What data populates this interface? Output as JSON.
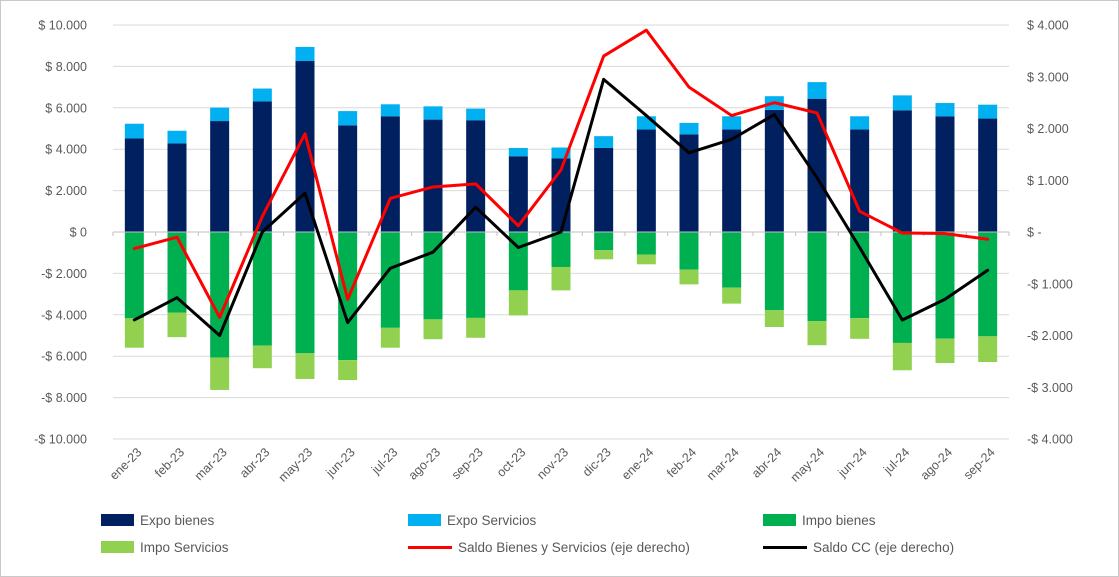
{
  "chart_data": {
    "type": "combo-stacked-bar-line",
    "title": "",
    "categories": [
      "ene-23",
      "feb-23",
      "mar-23",
      "abr-23",
      "may-23",
      "jun-23",
      "jul-23",
      "ago-23",
      "sep-23",
      "oct-23",
      "nov-23",
      "dic-23",
      "ene-24",
      "feb-24",
      "mar-24",
      "abr-24",
      "may-24",
      "jun-24",
      "jul-24",
      "ago-24",
      "sep-24"
    ],
    "series": [
      {
        "name": "Expo bienes",
        "type": "bar",
        "stack": "pos",
        "axis": "left",
        "color": "#002060",
        "values": [
          4520,
          4280,
          5360,
          6310,
          8260,
          5150,
          5590,
          5430,
          5400,
          3660,
          3550,
          4060,
          4950,
          4720,
          4950,
          5900,
          6440,
          4950,
          5880,
          5590,
          5480
        ]
      },
      {
        "name": "Expo Servicios",
        "type": "bar",
        "stack": "pos",
        "axis": "left",
        "color": "#00B0F0",
        "values": [
          710,
          610,
          650,
          620,
          680,
          690,
          580,
          640,
          560,
          400,
          530,
          570,
          640,
          550,
          640,
          660,
          800,
          640,
          720,
          640,
          670
        ]
      },
      {
        "name": "Impo bienes",
        "type": "bar",
        "stack": "neg",
        "axis": "left",
        "color": "#00B050",
        "values": [
          -4170,
          -3890,
          -6070,
          -5490,
          -5860,
          -6190,
          -4630,
          -4220,
          -4150,
          -2820,
          -1690,
          -880,
          -1090,
          -1820,
          -2690,
          -3780,
          -4310,
          -4160,
          -5360,
          -5150,
          -5040
        ]
      },
      {
        "name": "Impo Servicios",
        "type": "bar",
        "stack": "neg",
        "axis": "left",
        "color": "#92D050",
        "values": [
          -1420,
          -1190,
          -1560,
          -1090,
          -1240,
          -960,
          -960,
          -960,
          -960,
          -1210,
          -1130,
          -440,
          -470,
          -710,
          -770,
          -810,
          -1160,
          -1000,
          -1320,
          -1180,
          -1240
        ]
      },
      {
        "name": "Saldo Bienes y Servicios (eje derecho)",
        "type": "line",
        "axis": "right",
        "color": "#FF0000",
        "values": [
          -320,
          -100,
          -1650,
          300,
          1900,
          -1300,
          650,
          870,
          930,
          120,
          1200,
          3400,
          3900,
          2800,
          2250,
          2500,
          2300,
          400,
          -20,
          -30,
          -140
        ]
      },
      {
        "name": "Saldo CC (eje derecho)",
        "type": "line",
        "axis": "right",
        "color": "#000000",
        "values": [
          -1700,
          -1270,
          -2000,
          0,
          750,
          -1750,
          -700,
          -390,
          480,
          -300,
          0,
          2950,
          2250,
          1530,
          1790,
          2270,
          1050,
          -300,
          -1700,
          -1300,
          -740
        ]
      }
    ],
    "left_axis": {
      "min": -10000,
      "max": 10000,
      "step": 2000,
      "ticks": [
        "$ 10.000",
        "$ 8.000",
        "$ 6.000",
        "$ 4.000",
        "$ 2.000",
        "$ 0",
        "-$ 2.000",
        "-$ 4.000",
        "-$ 6.000",
        "-$ 8.000",
        "-$ 10.000"
      ]
    },
    "right_axis": {
      "min": -4000,
      "max": 4000,
      "step": 1000,
      "ticks": [
        "$ 4.000",
        "$ 3.000",
        "$ 2.000",
        "$ 1.000",
        "$ -",
        "-$ 1.000",
        "-$ 2.000",
        "-$ 3.000",
        "-$ 4.000"
      ]
    },
    "grid": true,
    "grid_color": "#D9D9D9",
    "axis_text_color": "#595959",
    "legend_position": "bottom"
  }
}
